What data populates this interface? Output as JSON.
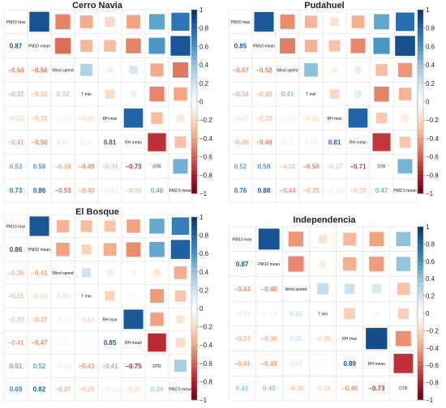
{
  "colorbar": {
    "ticks": [
      "1",
      "0.8",
      "0.6",
      "0.4",
      "0.2",
      "0",
      "−0.2",
      "−0.4",
      "−0.6",
      "−0.8",
      "−1"
    ],
    "ticks_num": [
      1,
      0.8,
      0.6,
      0.4,
      0.2,
      0,
      -0.2,
      -0.4,
      -0.6,
      -0.8,
      -1
    ],
    "colors": {
      "pos": "#053061",
      "neg": "#67001f",
      "mid": "#ffffff"
    }
  },
  "chart_data": [
    {
      "type": "heatmap",
      "title": "Cerro Navia",
      "variables": [
        "PM10 max",
        "PM10 mean",
        "Wind speed",
        "T min",
        "RH max",
        "RH mean",
        "DTR",
        "PM2.5 mean"
      ],
      "matrix": [
        [
          1,
          0.87,
          -0.5,
          -0.37,
          -0.22,
          -0.41,
          0.53,
          0.73
        ],
        [
          0.87,
          1,
          -0.56,
          -0.33,
          -0.31,
          -0.5,
          0.58,
          0.86
        ],
        [
          -0.5,
          -0.56,
          1,
          0.32,
          -0.09,
          0.17,
          -0.38,
          -0.53
        ],
        [
          -0.37,
          -0.33,
          0.32,
          1,
          -0.2,
          0.1,
          -0.49,
          -0.4
        ],
        [
          -0.22,
          -0.31,
          -0.09,
          -0.2,
          1,
          0.81,
          -0.31,
          -0.13
        ],
        [
          -0.41,
          -0.5,
          0.17,
          0.1,
          0.81,
          1,
          -0.73,
          -0.3
        ],
        [
          0.53,
          0.58,
          -0.38,
          -0.49,
          -0.31,
          -0.73,
          1,
          0.48
        ],
        [
          0.73,
          0.86,
          -0.53,
          -0.4,
          -0.13,
          -0.3,
          0.48,
          1
        ]
      ],
      "labels_lower": [
        [
          "0.87"
        ],
        [
          "−0.50",
          "−0.56"
        ],
        [
          "−0.37",
          "−0.33",
          "0.32"
        ],
        [
          "−0.22",
          "−0.31",
          "−0.09",
          "−0.20"
        ],
        [
          "−0.41",
          "−0.50",
          "0.17",
          "0.10",
          "0.81"
        ],
        [
          "0.53",
          "0.58",
          "−0.38",
          "−0.49",
          "−0.31",
          "−0.73"
        ],
        [
          "0.73",
          "0.86",
          "−0.53",
          "−0.40",
          "−0.13",
          "−0.30",
          "0.48"
        ]
      ]
    },
    {
      "type": "heatmap",
      "title": "Pudahuel",
      "variables": [
        "PM10 max",
        "PM10 mean",
        "Wind speed",
        "T min",
        "RH max",
        "RH mean",
        "DTR",
        "PM2.5 mean"
      ],
      "matrix": [
        [
          1,
          0.85,
          -0.47,
          -0.34,
          -0.17,
          -0.36,
          0.52,
          0.76
        ],
        [
          0.85,
          1,
          -0.52,
          -0.35,
          -0.29,
          -0.48,
          0.59,
          0.88
        ],
        [
          -0.47,
          -0.52,
          1,
          0.41,
          -0.09,
          0.11,
          -0.31,
          -0.44
        ],
        [
          -0.34,
          -0.35,
          0.41,
          1,
          -0.21,
          0.13,
          -0.5,
          -0.35
        ],
        [
          -0.17,
          -0.29,
          -0.09,
          -0.21,
          1,
          0.81,
          -0.27,
          -0.12
        ],
        [
          -0.36,
          -0.48,
          0.11,
          0.13,
          0.81,
          1,
          -0.71,
          -0.28
        ],
        [
          0.52,
          0.59,
          -0.31,
          -0.5,
          -0.27,
          -0.71,
          1,
          0.47
        ],
        [
          0.76,
          0.88,
          -0.44,
          -0.35,
          -0.12,
          -0.28,
          0.47,
          1
        ]
      ],
      "labels_lower": [
        [
          "0.85"
        ],
        [
          "−0.47",
          "−0.52"
        ],
        [
          "−0.34",
          "−0.35",
          "0.41"
        ],
        [
          "−0.17",
          "−0.29",
          "−0.09",
          "−0.21"
        ],
        [
          "−0.36",
          "−0.48",
          "0.11",
          "0.13",
          "0.81"
        ],
        [
          "0.52",
          "0.59",
          "−0.31",
          "−0.50",
          "−0.27",
          "−0.71"
        ],
        [
          "0.76",
          "0.88",
          "−0.44",
          "−0.35",
          "−0.12",
          "−0.28",
          "0.47"
        ]
      ]
    },
    {
      "type": "heatmap",
      "title": "El Bosque",
      "variables": [
        "PM10 max",
        "PM10 mean",
        "Wind speed",
        "T min",
        "RH max",
        "RH mean",
        "DTR",
        "PM2.5 mean"
      ],
      "matrix": [
        [
          1,
          0.86,
          -0.35,
          -0.31,
          -0.29,
          -0.41,
          0.51,
          0.69
        ],
        [
          0.86,
          1,
          -0.41,
          -0.23,
          -0.37,
          -0.47,
          0.52,
          0.82
        ],
        [
          -0.35,
          -0.41,
          1,
          0.2,
          -0.1,
          0.06,
          -0.12,
          -0.37
        ],
        [
          -0.31,
          -0.23,
          0.2,
          1,
          -0.22,
          0.04,
          -0.43,
          -0.28
        ],
        [
          -0.29,
          -0.37,
          -0.1,
          -0.22,
          1,
          0.85,
          -0.41,
          -0.15
        ],
        [
          -0.41,
          -0.47,
          0.06,
          0.04,
          0.85,
          1,
          -0.75,
          -0.2
        ],
        [
          0.51,
          0.52,
          -0.12,
          -0.43,
          -0.41,
          -0.75,
          1,
          0.34
        ],
        [
          0.69,
          0.82,
          -0.37,
          -0.28,
          -0.15,
          -0.2,
          0.34,
          1
        ]
      ],
      "labels_lower": [
        [
          "0.86"
        ],
        [
          "−0.35",
          "−0.41"
        ],
        [
          "−0.31",
          "−0.23",
          "0.20"
        ],
        [
          "−0.29",
          "−0.37",
          "−0.10",
          "−0.22"
        ],
        [
          "−0.41",
          "−0.47",
          "0.06",
          "0.04",
          "0.85"
        ],
        [
          "0.51",
          "0.52",
          "−0.12",
          "−0.43",
          "−0.41",
          "−0.75"
        ],
        [
          "0.69",
          "0.82",
          "−0.37",
          "−0.28",
          "−0.15",
          "−0.20",
          "0.34"
        ]
      ]
    },
    {
      "type": "heatmap",
      "title": "Independencia",
      "variables": [
        "PM10 max",
        "PM10 mean",
        "Wind speed",
        "T min",
        "RH max",
        "RH mean",
        "DTR"
      ],
      "matrix": [
        [
          1,
          0.87,
          -0.44,
          -0.15,
          -0.33,
          -0.41,
          0.41
        ],
        [
          0.87,
          1,
          -0.48,
          -0.1,
          -0.36,
          -0.43,
          0.4
        ],
        [
          -0.44,
          -0.48,
          1,
          0.25,
          0.22,
          0.17,
          -0.3
        ],
        [
          -0.15,
          -0.1,
          0.25,
          1,
          -0.25,
          0.05,
          -0.24
        ],
        [
          -0.33,
          -0.36,
          0.22,
          -0.25,
          1,
          0.89,
          -0.46
        ],
        [
          -0.41,
          -0.43,
          0.17,
          0.05,
          0.89,
          1,
          -0.73
        ],
        [
          0.41,
          0.4,
          -0.3,
          -0.24,
          -0.46,
          -0.73,
          1
        ]
      ],
      "labels_lower": [
        [
          "0.87"
        ],
        [
          "−0.44",
          "−0.48"
        ],
        [
          "−0.15",
          "−0.10",
          "0.25"
        ],
        [
          "−0.33",
          "−0.36",
          "0.22",
          "−0.25"
        ],
        [
          "−0.41",
          "−0.43",
          "0.17",
          "0.05",
          "0.89"
        ],
        [
          "0.41",
          "0.40",
          "−0.30",
          "−0.24",
          "−0.46",
          "−0.73"
        ]
      ]
    }
  ]
}
